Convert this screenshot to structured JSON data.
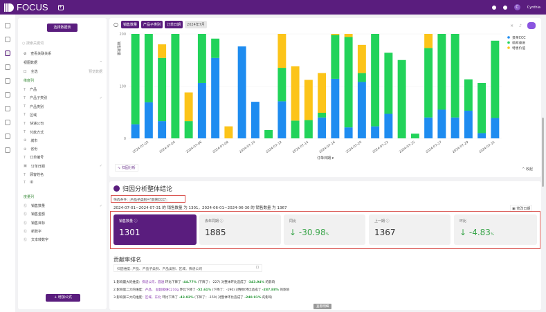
{
  "header": {
    "app": "FOCUS",
    "user": "Cynthia"
  },
  "sidebar": {
    "select_table": "选择数据表",
    "search_placeholder": "搜索关键词",
    "relation": "查看关联关系",
    "view_data": "视图数据",
    "select_all": "全选",
    "preview": "预览数据",
    "dim_title": "维度列",
    "dimensions": [
      "产品",
      "产品子类别",
      "产品类别",
      "区域",
      "快递公司",
      "付款方式",
      "城市",
      "省份",
      "订单编号",
      "订单日期",
      "顾客姓名",
      "ID"
    ],
    "measure_title": "度量列",
    "measures": [
      "销售数量",
      "销售金额",
      "销售目标",
      "新数字",
      "文本转数字"
    ],
    "add_formula": "增加公式"
  },
  "toolbar": {
    "tags": [
      "销售数量",
      "产品子类别",
      "订单日期"
    ],
    "period": "2024年7月"
  },
  "chart_data": {
    "type": "bar",
    "stacked": true,
    "ylabel": "销售数量",
    "xlabel": "订单日期",
    "ylim": [
      0,
      200
    ],
    "yticks": [
      0,
      100,
      200
    ],
    "legend_position": "top-right",
    "categories": [
      "2024-07-01",
      "2024-07-02",
      "2024-07-03",
      "2024-07-04",
      "2024-07-05",
      "2024-07-06",
      "2024-07-07",
      "2024-07-08",
      "2024-07-09",
      "2024-07-10",
      "2024-07-11",
      "2024-07-12",
      "2024-07-13",
      "2024-07-14",
      "2024-07-15",
      "2024-07-16",
      "2024-07-18",
      "2024-07-20",
      "2024-07-21",
      "2024-07-22",
      "2024-07-23",
      "2024-07-25",
      "2024-07-26",
      "2024-07-27",
      "2024-07-28",
      "2024-07-29",
      "2024-07-30",
      "2024-07-31"
    ],
    "xticklabels": [
      "2024-07-02",
      "2024-07-04",
      "2024-07-06",
      "2024-07-08",
      "2024-07-10",
      "2024-07-12",
      "2024-07-14",
      "2024-07-16",
      "2024-07-20",
      "2024-07-22",
      "2024-07-25",
      "2024-07-27",
      "2024-07-29",
      "2024-07-31"
    ],
    "series": [
      {
        "name": "景荣CCC",
        "color": "#1e8cf0",
        "values": [
          27,
          69,
          33,
          0,
          0,
          106,
          154,
          0,
          176,
          70,
          0,
          71,
          0,
          0,
          40,
          114,
          21,
          108,
          23,
          47,
          0,
          0,
          40,
          55,
          40,
          53,
          10,
          39
        ]
      },
      {
        "name": "德邦速度",
        "color": "#22d35a",
        "values": [
          173,
          131,
          121,
          200,
          33,
          94,
          37,
          0,
          0,
          0,
          16,
          64,
          34,
          35,
          9,
          84,
          173,
          17,
          177,
          117,
          150,
          9,
          133,
          145,
          160,
          60,
          96,
          148
        ]
      },
      {
        "name": "特惠价值",
        "color": "#fcc419",
        "values": [
          0,
          0,
          26,
          0,
          55,
          0,
          0,
          23,
          0,
          0,
          0,
          65,
          104,
          77,
          76,
          2,
          6,
          54,
          0,
          0,
          0,
          0,
          27,
          0,
          0,
          0,
          0,
          0
        ]
      }
    ]
  },
  "chart_footer": {
    "attribution": "归因分析",
    "collapse": "收起"
  },
  "conclusion": {
    "title": "归因分析整体结论",
    "filter_label": "筛选条件:",
    "filter_value": "产品子类别=\"景荣CCC\"",
    "summary": "2024-07-01~2024-07-31 的 销售数量 为 1301，2024-06-01~2024-06-30 的 销售数量 为 1367",
    "modify": "修改日期",
    "kpis": [
      {
        "label": "销售数量",
        "value": "1301"
      },
      {
        "label": "去年同期",
        "value": "1885"
      },
      {
        "label": "同比",
        "value": "-30.98",
        "unit": "%"
      },
      {
        "label": "上一期",
        "value": "1367"
      },
      {
        "label": "环比",
        "value": "-4.83",
        "unit": "%"
      }
    ]
  },
  "ranking": {
    "title": "贡献率排名",
    "dims": "归因维度: 产品、产品子类别、产品类别、区域、快递公司",
    "lines": [
      {
        "a": "1.影响最大的维度：",
        "b": "快递公司、圆通",
        "c": "环比下降了",
        "d": "-44.77%",
        "e": "(下降了：-227) 对整体环比造成了",
        "f": "-343.94%",
        "g": "的影响"
      },
      {
        "a": "2.影响第二大的维度：",
        "b": "产品、 益超级维C210g",
        "c": "环比下降了",
        "d": "-52.61%",
        "e": "(下降了：-190) 对整体环比造成了",
        "f": "-287.88%",
        "g": "的影响"
      },
      {
        "a": "3.影响第三大的维度：",
        "b": "区域、东北",
        "c": "环比下降了",
        "d": "-43.92%",
        "e": "(下降了：-159) 对整体环比造成了",
        "f": "-240.91%",
        "g": "的影响"
      }
    ],
    "button": "查看明细"
  }
}
